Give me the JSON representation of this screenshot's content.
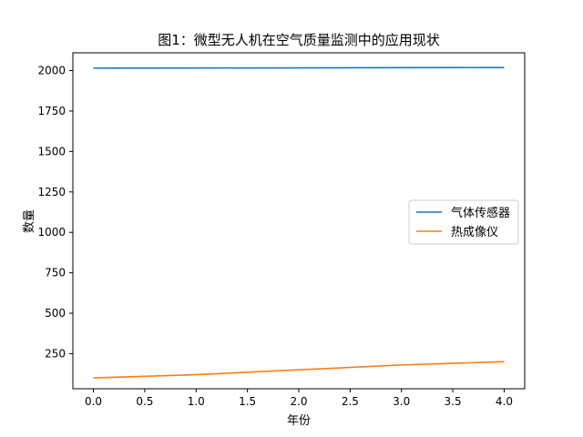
{
  "chart_data": {
    "type": "line",
    "title": "图1：微型无人机在空气质量监测中的应用现状",
    "xlabel": "年份",
    "ylabel": "数量",
    "x": [
      0,
      1,
      2,
      3,
      4
    ],
    "series": [
      {
        "name": "气体传感器",
        "color": "#1f77b4",
        "values": [
          2015,
          2016,
          2017,
          2018,
          2019
        ]
      },
      {
        "name": "热成像仪",
        "color": "#ff7f0e",
        "values": [
          100,
          120,
          150,
          180,
          200
        ]
      }
    ],
    "xlim": [
      -0.2,
      4.2
    ],
    "ylim": [
      33,
      2110
    ],
    "xticks": [
      0.0,
      0.5,
      1.0,
      1.5,
      2.0,
      2.5,
      3.0,
      3.5,
      4.0
    ],
    "xtick_labels": [
      "0.0",
      "0.5",
      "1.0",
      "1.5",
      "2.0",
      "2.5",
      "3.0",
      "3.5",
      "4.0"
    ],
    "yticks": [
      250,
      500,
      750,
      1000,
      1250,
      1500,
      1750,
      2000
    ],
    "ytick_labels": [
      "250",
      "500",
      "750",
      "1000",
      "1250",
      "1500",
      "1750",
      "2000"
    ],
    "grid": false,
    "legend_position": "center-right"
  }
}
